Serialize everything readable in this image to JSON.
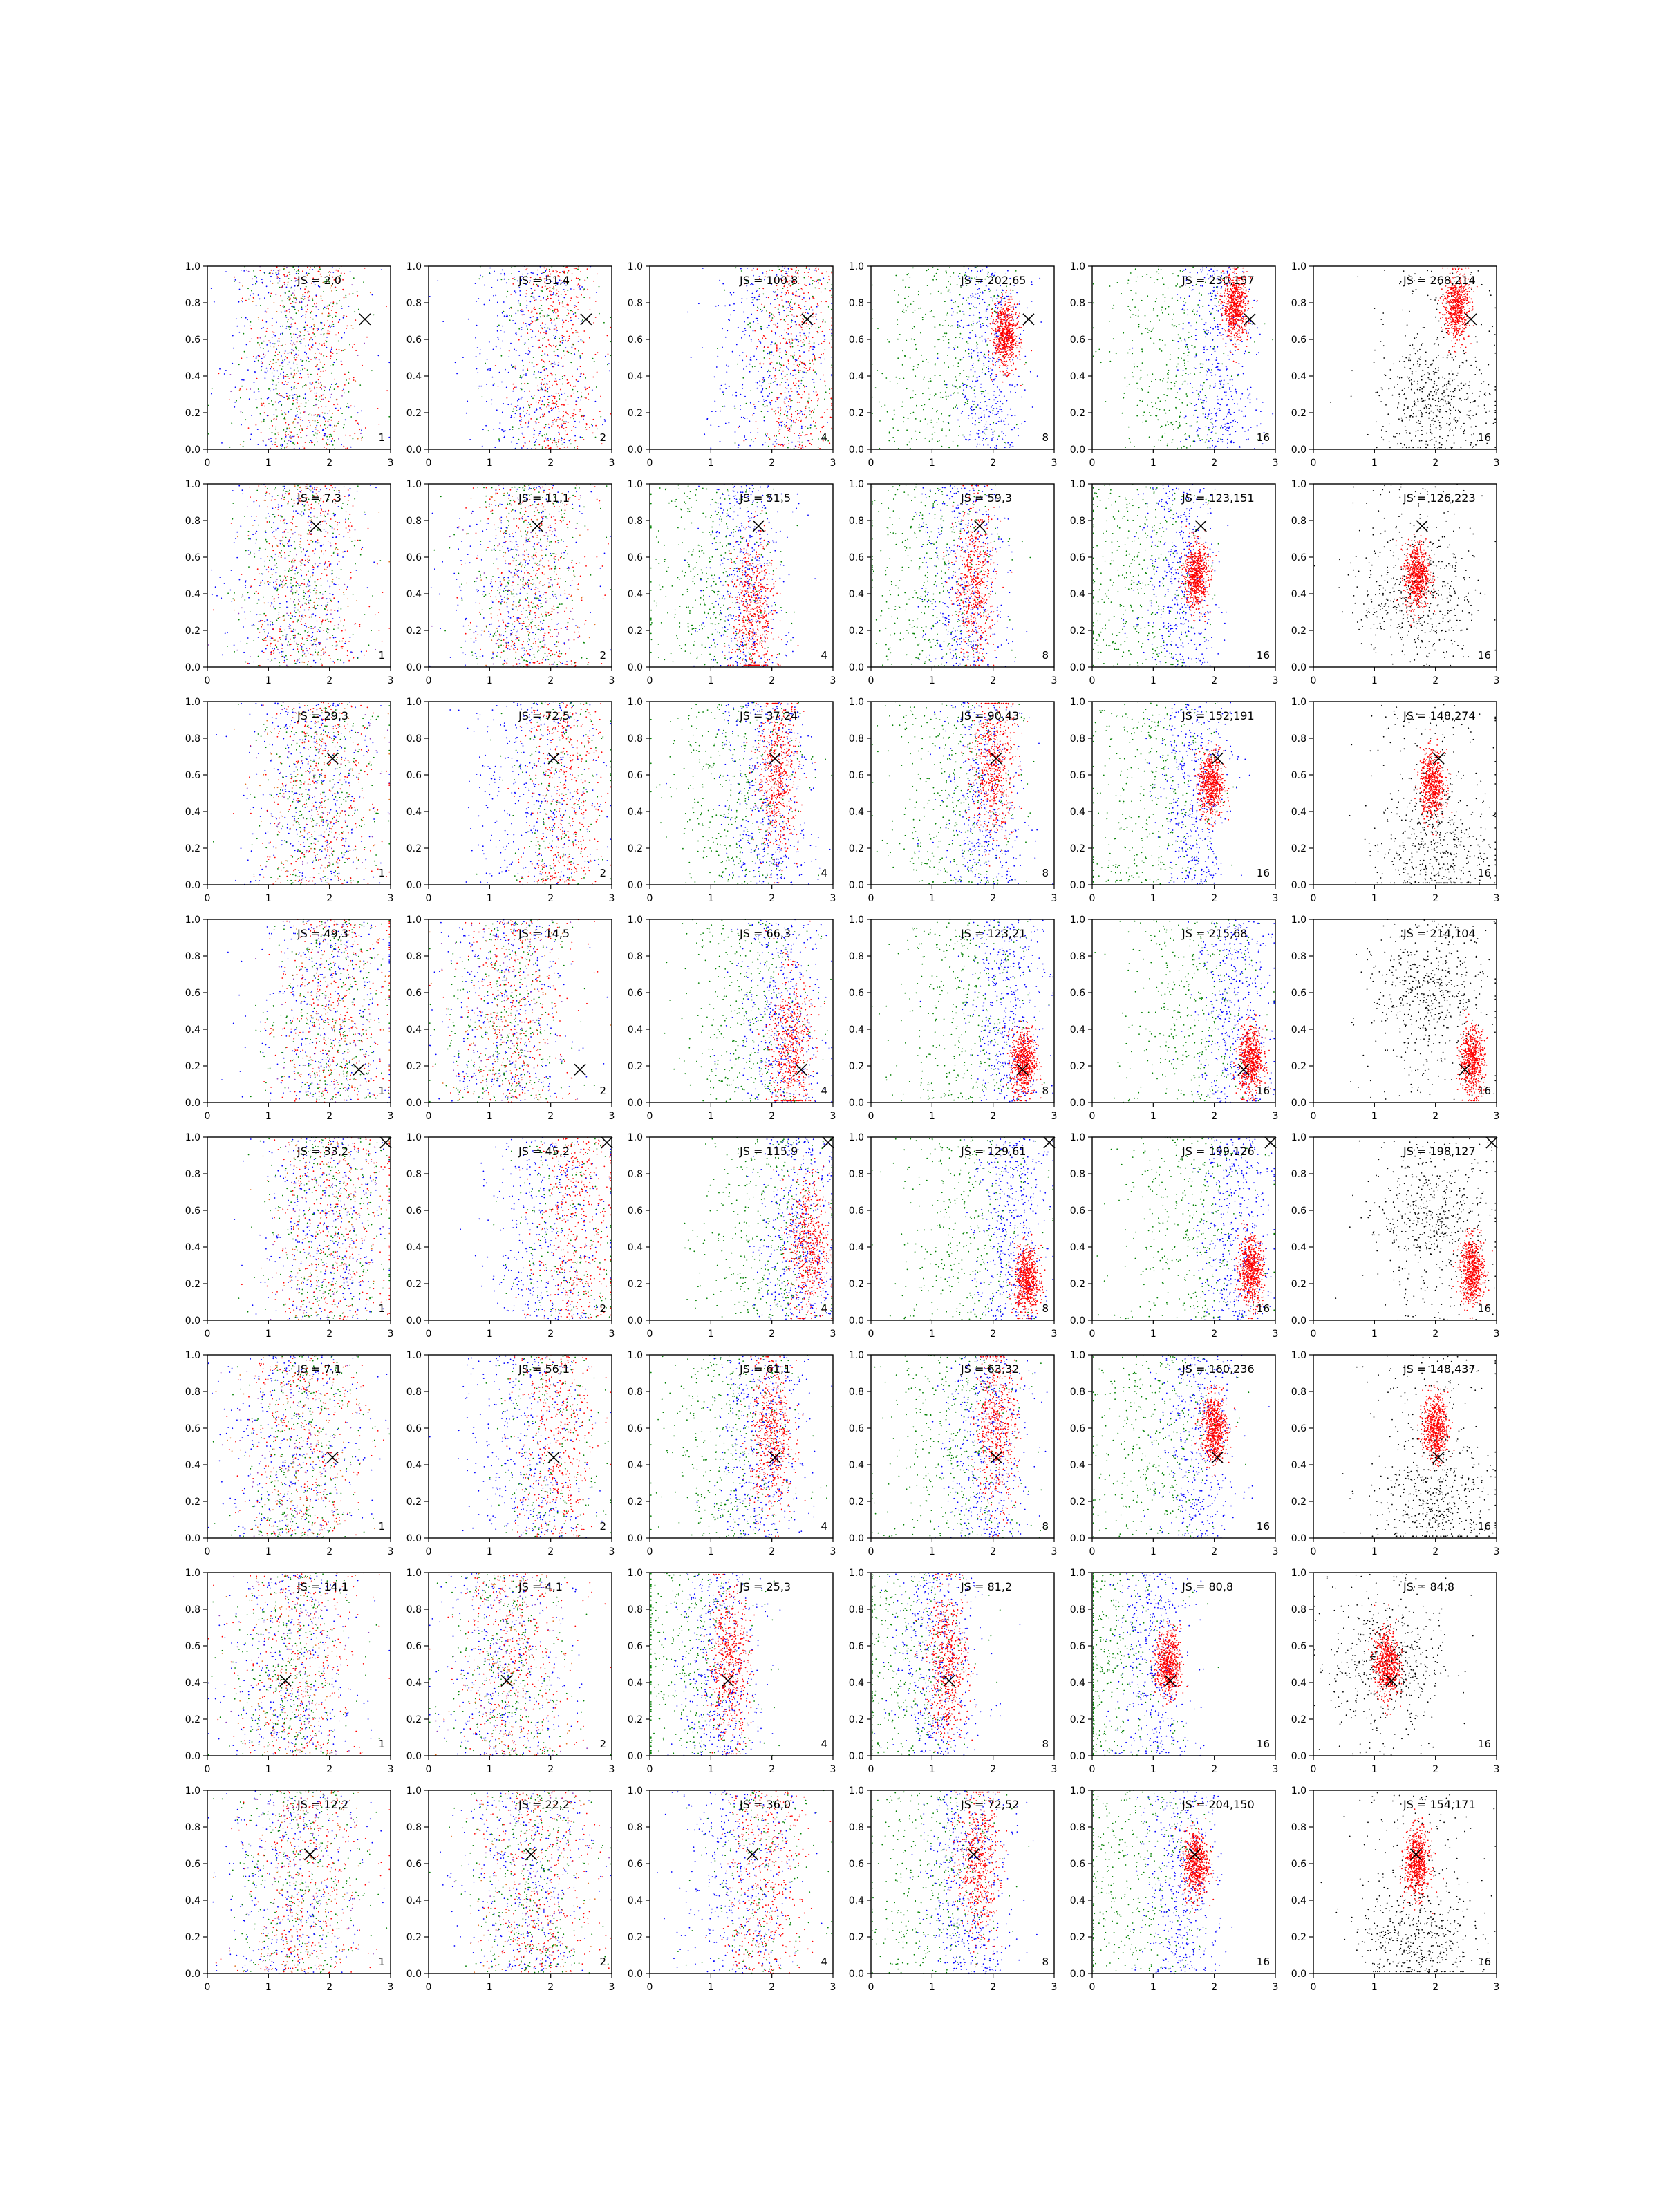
{
  "figure": {
    "rows": 8,
    "cols": 6,
    "xlim": [
      0,
      3
    ],
    "ylim": [
      0,
      1
    ],
    "xticks": [
      "0",
      "1",
      "2",
      "3"
    ],
    "yticks": [
      "0.0",
      "0.2",
      "0.4",
      "0.6",
      "0.8",
      "1.0"
    ],
    "colors": {
      "red": "#ff0000",
      "green": "#008000",
      "blue": "#0000ff",
      "black": "#000000",
      "orange": "#e07020",
      "purple": "#9040c0",
      "axis": "#000000"
    },
    "marker_icon": "x-mark-icon"
  },
  "chart_data": [
    {
      "type": "scatter",
      "row": 1,
      "col": 1,
      "js_label": "JS = 2,0",
      "corner_label": "1",
      "marker": [
        2.58,
        0.71
      ],
      "mix": "uniform",
      "center": [
        1.5,
        0.5
      ]
    },
    {
      "type": "scatter",
      "row": 1,
      "col": 2,
      "js_label": "JS = 51,4",
      "corner_label": "2",
      "marker": [
        2.58,
        0.71
      ],
      "mix": "rb",
      "center": [
        2.0,
        0.5
      ]
    },
    {
      "type": "scatter",
      "row": 1,
      "col": 3,
      "js_label": "JS = 100,8",
      "corner_label": "4",
      "marker": [
        2.58,
        0.71
      ],
      "mix": "rb",
      "center": [
        2.3,
        0.5
      ]
    },
    {
      "type": "scatter",
      "row": 1,
      "col": 4,
      "js_label": "JS = 202,65",
      "corner_label": "8",
      "marker": [
        2.58,
        0.71
      ],
      "mix": "rgb_red_cluster",
      "center": [
        2.2,
        0.62
      ]
    },
    {
      "type": "scatter",
      "row": 1,
      "col": 5,
      "js_label": "JS = 230,157",
      "corner_label": "16",
      "marker": [
        2.58,
        0.71
      ],
      "mix": "rgb_red_cluster",
      "center": [
        2.35,
        0.78
      ]
    },
    {
      "type": "scatter",
      "row": 1,
      "col": 6,
      "js_label": "JS = 268,214",
      "corner_label": "16",
      "marker": [
        2.58,
        0.71
      ],
      "mix": "black_red",
      "center": [
        2.35,
        0.78
      ],
      "black_center": [
        2.0,
        0.25
      ]
    },
    {
      "type": "scatter",
      "row": 2,
      "col": 1,
      "js_label": "JS = 7,3",
      "corner_label": "1",
      "marker": [
        1.78,
        0.77
      ],
      "mix": "uniform",
      "center": [
        1.5,
        0.5
      ]
    },
    {
      "type": "scatter",
      "row": 2,
      "col": 2,
      "js_label": "JS = 11,1",
      "corner_label": "2",
      "marker": [
        1.78,
        0.77
      ],
      "mix": "uniform",
      "center": [
        1.6,
        0.5
      ]
    },
    {
      "type": "scatter",
      "row": 2,
      "col": 3,
      "js_label": "JS = 51,5",
      "corner_label": "4",
      "marker": [
        1.78,
        0.77
      ],
      "mix": "rgb_wide",
      "center": [
        1.7,
        0.3
      ]
    },
    {
      "type": "scatter",
      "row": 2,
      "col": 4,
      "js_label": "JS = 59,3",
      "corner_label": "8",
      "marker": [
        1.78,
        0.77
      ],
      "mix": "rgb_wide",
      "center": [
        1.7,
        0.45
      ]
    },
    {
      "type": "scatter",
      "row": 2,
      "col": 5,
      "js_label": "JS = 123,151",
      "corner_label": "16",
      "marker": [
        1.78,
        0.77
      ],
      "mix": "rgb_red_cluster",
      "center": [
        1.7,
        0.5
      ]
    },
    {
      "type": "scatter",
      "row": 2,
      "col": 6,
      "js_label": "JS = 126,223",
      "corner_label": "16",
      "marker": [
        1.78,
        0.77
      ],
      "mix": "black_red",
      "center": [
        1.7,
        0.5
      ],
      "black_center": [
        1.7,
        0.4
      ]
    },
    {
      "type": "scatter",
      "row": 3,
      "col": 1,
      "js_label": "JS = 29,3",
      "corner_label": "1",
      "marker": [
        2.05,
        0.69
      ],
      "mix": "uniform",
      "center": [
        1.8,
        0.5
      ]
    },
    {
      "type": "scatter",
      "row": 3,
      "col": 2,
      "js_label": "JS = 72,5",
      "corner_label": "2",
      "marker": [
        2.05,
        0.69
      ],
      "mix": "rb",
      "center": [
        2.1,
        0.5
      ]
    },
    {
      "type": "scatter",
      "row": 3,
      "col": 3,
      "js_label": "JS = 37,24",
      "corner_label": "4",
      "marker": [
        2.05,
        0.69
      ],
      "mix": "rgb_wide",
      "center": [
        2.1,
        0.6
      ]
    },
    {
      "type": "scatter",
      "row": 3,
      "col": 4,
      "js_label": "JS = 90,43",
      "corner_label": "8",
      "marker": [
        2.05,
        0.69
      ],
      "mix": "rgb_wide",
      "center": [
        2.0,
        0.65
      ]
    },
    {
      "type": "scatter",
      "row": 3,
      "col": 5,
      "js_label": "JS = 152,191",
      "corner_label": "16",
      "marker": [
        2.05,
        0.69
      ],
      "mix": "rgb_red_cluster",
      "center": [
        1.95,
        0.55
      ]
    },
    {
      "type": "scatter",
      "row": 3,
      "col": 6,
      "js_label": "JS = 148,274",
      "corner_label": "16",
      "marker": [
        2.05,
        0.69
      ],
      "mix": "black_red",
      "center": [
        1.95,
        0.55
      ],
      "black_center": [
        1.95,
        0.2
      ]
    },
    {
      "type": "scatter",
      "row": 4,
      "col": 1,
      "js_label": "JS = 49,3",
      "corner_label": "1",
      "marker": [
        2.48,
        0.18
      ],
      "mix": "uniform",
      "center": [
        2.0,
        0.5
      ]
    },
    {
      "type": "scatter",
      "row": 4,
      "col": 2,
      "js_label": "JS = 14,5",
      "corner_label": "2",
      "marker": [
        2.48,
        0.18
      ],
      "mix": "uniform",
      "center": [
        1.3,
        0.5
      ]
    },
    {
      "type": "scatter",
      "row": 4,
      "col": 3,
      "js_label": "JS = 66,3",
      "corner_label": "4",
      "marker": [
        2.48,
        0.18
      ],
      "mix": "rgb_wide",
      "center": [
        2.3,
        0.3
      ]
    },
    {
      "type": "scatter",
      "row": 4,
      "col": 4,
      "js_label": "JS = 123,21",
      "corner_label": "8",
      "marker": [
        2.48,
        0.18
      ],
      "mix": "rgb_red_cluster",
      "center": [
        2.5,
        0.22
      ]
    },
    {
      "type": "scatter",
      "row": 4,
      "col": 5,
      "js_label": "JS = 215,68",
      "corner_label": "16",
      "marker": [
        2.48,
        0.18
      ],
      "mix": "rgb_red_cluster",
      "center": [
        2.6,
        0.23
      ]
    },
    {
      "type": "scatter",
      "row": 4,
      "col": 6,
      "js_label": "JS = 214,104",
      "corner_label": "16",
      "marker": [
        2.48,
        0.18
      ],
      "mix": "black_red",
      "center": [
        2.6,
        0.23
      ],
      "black_center": [
        1.9,
        0.6
      ]
    },
    {
      "type": "scatter",
      "row": 5,
      "col": 1,
      "js_label": "JS = 33,2",
      "corner_label": "1",
      "marker": [
        2.92,
        0.97
      ],
      "mix": "uniform",
      "center": [
        2.0,
        0.5
      ]
    },
    {
      "type": "scatter",
      "row": 5,
      "col": 2,
      "js_label": "JS = 45,2",
      "corner_label": "2",
      "marker": [
        2.92,
        0.97
      ],
      "mix": "rb",
      "center": [
        2.3,
        0.5
      ]
    },
    {
      "type": "scatter",
      "row": 5,
      "col": 3,
      "js_label": "JS = 115,9",
      "corner_label": "4",
      "marker": [
        2.92,
        0.97
      ],
      "mix": "rgb_wide",
      "center": [
        2.6,
        0.4
      ]
    },
    {
      "type": "scatter",
      "row": 5,
      "col": 4,
      "js_label": "JS = 129,61",
      "corner_label": "8",
      "marker": [
        2.92,
        0.97
      ],
      "mix": "rgb_red_cluster",
      "center": [
        2.55,
        0.22
      ]
    },
    {
      "type": "scatter",
      "row": 5,
      "col": 5,
      "js_label": "JS = 199,126",
      "corner_label": "16",
      "marker": [
        2.92,
        0.97
      ],
      "mix": "rgb_red_cluster",
      "center": [
        2.6,
        0.27
      ]
    },
    {
      "type": "scatter",
      "row": 5,
      "col": 6,
      "js_label": "JS = 198,127",
      "corner_label": "16",
      "marker": [
        2.92,
        0.97
      ],
      "mix": "black_red",
      "center": [
        2.6,
        0.27
      ],
      "black_center": [
        2.0,
        0.55
      ]
    },
    {
      "type": "scatter",
      "row": 6,
      "col": 1,
      "js_label": "JS = 7,1",
      "corner_label": "1",
      "marker": [
        2.05,
        0.44
      ],
      "mix": "uniform",
      "center": [
        1.5,
        0.5
      ]
    },
    {
      "type": "scatter",
      "row": 6,
      "col": 2,
      "js_label": "JS = 56,1",
      "corner_label": "2",
      "marker": [
        2.05,
        0.44
      ],
      "mix": "rb",
      "center": [
        2.0,
        0.5
      ]
    },
    {
      "type": "scatter",
      "row": 6,
      "col": 3,
      "js_label": "JS = 61,1",
      "corner_label": "4",
      "marker": [
        2.05,
        0.44
      ],
      "mix": "rgb_wide",
      "center": [
        2.0,
        0.55
      ]
    },
    {
      "type": "scatter",
      "row": 6,
      "col": 4,
      "js_label": "JS = 63,32",
      "corner_label": "8",
      "marker": [
        2.05,
        0.44
      ],
      "mix": "rgb_wide",
      "center": [
        2.05,
        0.6
      ]
    },
    {
      "type": "scatter",
      "row": 6,
      "col": 5,
      "js_label": "JS = 160,236",
      "corner_label": "16",
      "marker": [
        2.05,
        0.44
      ],
      "mix": "rgb_red_cluster",
      "center": [
        2.0,
        0.6
      ]
    },
    {
      "type": "scatter",
      "row": 6,
      "col": 6,
      "js_label": "JS = 148,437",
      "corner_label": "16",
      "marker": [
        2.05,
        0.44
      ],
      "mix": "black_red",
      "center": [
        2.0,
        0.6
      ],
      "black_center": [
        2.0,
        0.2
      ]
    },
    {
      "type": "scatter",
      "row": 7,
      "col": 1,
      "js_label": "JS = 14,1",
      "corner_label": "1",
      "marker": [
        1.28,
        0.41
      ],
      "mix": "uniform",
      "center": [
        1.4,
        0.5
      ]
    },
    {
      "type": "scatter",
      "row": 7,
      "col": 2,
      "js_label": "JS = 4,1",
      "corner_label": "2",
      "marker": [
        1.28,
        0.41
      ],
      "mix": "uniform",
      "center": [
        1.3,
        0.5
      ]
    },
    {
      "type": "scatter",
      "row": 7,
      "col": 3,
      "js_label": "JS = 25,3",
      "corner_label": "4",
      "marker": [
        1.28,
        0.41
      ],
      "mix": "rgb_wide",
      "center": [
        1.3,
        0.5
      ]
    },
    {
      "type": "scatter",
      "row": 7,
      "col": 4,
      "js_label": "JS = 81,2",
      "corner_label": "8",
      "marker": [
        1.28,
        0.41
      ],
      "mix": "rgb_wide",
      "center": [
        1.25,
        0.5
      ]
    },
    {
      "type": "scatter",
      "row": 7,
      "col": 5,
      "js_label": "JS = 80,8",
      "corner_label": "16",
      "marker": [
        1.28,
        0.41
      ],
      "mix": "rgb_red_cluster",
      "center": [
        1.25,
        0.5
      ]
    },
    {
      "type": "scatter",
      "row": 7,
      "col": 6,
      "js_label": "JS = 84,8",
      "corner_label": "16",
      "marker": [
        1.28,
        0.41
      ],
      "mix": "black_red",
      "center": [
        1.2,
        0.5
      ],
      "black_center": [
        1.2,
        0.5
      ]
    },
    {
      "type": "scatter",
      "row": 8,
      "col": 1,
      "js_label": "JS = 12,2",
      "corner_label": "1",
      "marker": [
        1.68,
        0.65
      ],
      "mix": "uniform",
      "center": [
        1.5,
        0.5
      ]
    },
    {
      "type": "scatter",
      "row": 8,
      "col": 2,
      "js_label": "JS = 22,2",
      "corner_label": "2",
      "marker": [
        1.68,
        0.65
      ],
      "mix": "uniform",
      "center": [
        1.7,
        0.5
      ]
    },
    {
      "type": "scatter",
      "row": 8,
      "col": 3,
      "js_label": "JS = 36,0",
      "corner_label": "4",
      "marker": [
        1.68,
        0.65
      ],
      "mix": "rb",
      "center": [
        1.8,
        0.5
      ]
    },
    {
      "type": "scatter",
      "row": 8,
      "col": 4,
      "js_label": "JS = 72,52",
      "corner_label": "8",
      "marker": [
        1.68,
        0.65
      ],
      "mix": "rgb_wide",
      "center": [
        1.75,
        0.6
      ]
    },
    {
      "type": "scatter",
      "row": 8,
      "col": 5,
      "js_label": "JS = 204,150",
      "corner_label": "16",
      "marker": [
        1.68,
        0.65
      ],
      "mix": "rgb_red_cluster",
      "center": [
        1.7,
        0.6
      ]
    },
    {
      "type": "scatter",
      "row": 8,
      "col": 6,
      "js_label": "JS = 154,171",
      "corner_label": "16",
      "marker": [
        1.68,
        0.65
      ],
      "mix": "black_red",
      "center": [
        1.7,
        0.6
      ],
      "black_center": [
        1.7,
        0.2
      ]
    }
  ]
}
